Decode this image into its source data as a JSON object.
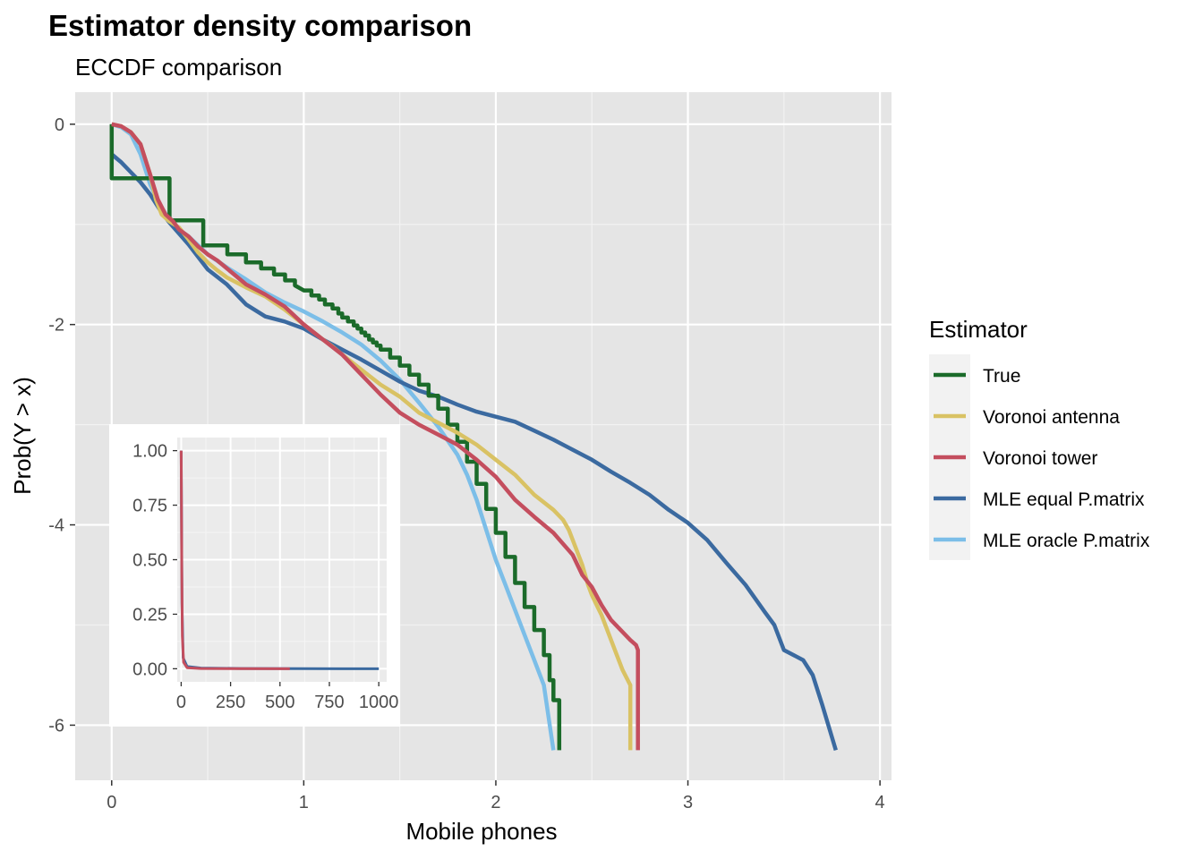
{
  "chart_data": {
    "type": "line",
    "title": "Estimator density comparison",
    "subtitle": "ECCDF comparison",
    "xlabel": "Mobile phones",
    "ylabel": "Prob(Y > x)",
    "xlim": [
      -0.19,
      4.06
    ],
    "ylim": [
      -6.55,
      0.32
    ],
    "x_ticks": [
      0,
      1,
      2,
      3,
      4
    ],
    "y_ticks": [
      0,
      -2,
      -4,
      -6
    ],
    "x_tick_labels": [
      "0",
      "1",
      "2",
      "3",
      "4"
    ],
    "y_tick_labels": [
      "0",
      "-2",
      "-4",
      "-6"
    ],
    "grid": true,
    "legend": {
      "title": "Estimator",
      "position": "right"
    },
    "series": [
      {
        "name": "True",
        "color": "#1b6b2a",
        "step": true,
        "x": [
          0.0,
          0.0,
          0.301,
          0.301,
          0.477,
          0.477,
          0.602,
          0.602,
          0.699,
          0.699,
          0.778,
          0.778,
          0.845,
          0.845,
          0.903,
          0.903,
          0.954,
          0.954,
          1.0,
          1.04,
          1.08,
          1.11,
          1.15,
          1.18,
          1.2,
          1.23,
          1.26,
          1.28,
          1.3,
          1.32,
          1.34,
          1.36,
          1.38,
          1.4,
          1.45,
          1.5,
          1.55,
          1.6,
          1.65,
          1.7,
          1.75,
          1.8,
          1.85,
          1.9,
          1.95,
          2.0,
          2.05,
          2.1,
          2.15,
          2.2,
          2.25,
          2.28,
          2.3,
          2.33,
          2.33
        ],
        "y": [
          0.0,
          -0.54,
          -0.54,
          -0.96,
          -0.96,
          -1.21,
          -1.21,
          -1.3,
          -1.3,
          -1.38,
          -1.38,
          -1.44,
          -1.44,
          -1.5,
          -1.5,
          -1.56,
          -1.56,
          -1.61,
          -1.66,
          -1.71,
          -1.75,
          -1.8,
          -1.84,
          -1.89,
          -1.93,
          -1.97,
          -2.01,
          -2.04,
          -2.08,
          -2.11,
          -2.15,
          -2.18,
          -2.21,
          -2.25,
          -2.33,
          -2.41,
          -2.5,
          -2.6,
          -2.71,
          -2.84,
          -3.0,
          -3.17,
          -3.37,
          -3.59,
          -3.84,
          -4.08,
          -4.32,
          -4.58,
          -4.82,
          -5.05,
          -5.3,
          -5.55,
          -5.75,
          -5.85,
          -6.25
        ]
      },
      {
        "name": "Voronoi antenna",
        "color": "#d9c264",
        "step": false,
        "x": [
          0.0,
          0.05,
          0.1,
          0.15,
          0.2,
          0.23,
          0.26,
          0.3,
          0.35,
          0.4,
          0.45,
          0.5,
          0.55,
          0.6,
          0.7,
          0.8,
          0.9,
          1.0,
          1.1,
          1.15,
          1.2,
          1.3,
          1.4,
          1.5,
          1.55,
          1.6,
          1.7,
          1.8,
          1.9,
          2.0,
          2.1,
          2.2,
          2.3,
          2.35,
          2.38,
          2.42,
          2.45,
          2.48,
          2.5,
          2.52,
          2.55,
          2.58,
          2.6,
          2.63,
          2.66,
          2.7,
          2.7
        ],
        "y": [
          0.0,
          -0.02,
          -0.08,
          -0.2,
          -0.5,
          -0.75,
          -0.9,
          -0.97,
          -1.03,
          -1.15,
          -1.28,
          -1.38,
          -1.46,
          -1.53,
          -1.63,
          -1.72,
          -1.85,
          -2.0,
          -2.15,
          -2.22,
          -2.3,
          -2.45,
          -2.6,
          -2.72,
          -2.8,
          -2.88,
          -2.98,
          -3.08,
          -3.2,
          -3.35,
          -3.5,
          -3.7,
          -3.85,
          -3.95,
          -4.05,
          -4.25,
          -4.4,
          -4.6,
          -4.7,
          -4.78,
          -4.9,
          -5.05,
          -5.15,
          -5.3,
          -5.45,
          -5.6,
          -6.25
        ]
      },
      {
        "name": "Voronoi tower",
        "color": "#c44e5e",
        "step": false,
        "x": [
          0.0,
          0.05,
          0.1,
          0.15,
          0.2,
          0.24,
          0.28,
          0.32,
          0.35,
          0.4,
          0.45,
          0.5,
          0.55,
          0.6,
          0.7,
          0.8,
          0.9,
          1.0,
          1.1,
          1.2,
          1.3,
          1.4,
          1.5,
          1.6,
          1.7,
          1.8,
          1.9,
          2.0,
          2.1,
          2.2,
          2.3,
          2.4,
          2.45,
          2.5,
          2.55,
          2.6,
          2.65,
          2.7,
          2.73,
          2.74,
          2.74
        ],
        "y": [
          0.0,
          -0.02,
          -0.08,
          -0.2,
          -0.5,
          -0.75,
          -0.9,
          -0.97,
          -1.05,
          -1.12,
          -1.22,
          -1.3,
          -1.36,
          -1.44,
          -1.6,
          -1.7,
          -1.82,
          -2.0,
          -2.15,
          -2.3,
          -2.5,
          -2.7,
          -2.88,
          -3.0,
          -3.1,
          -3.2,
          -3.35,
          -3.52,
          -3.75,
          -3.92,
          -4.08,
          -4.3,
          -4.5,
          -4.62,
          -4.8,
          -4.95,
          -5.05,
          -5.15,
          -5.2,
          -5.25,
          -6.25
        ]
      },
      {
        "name": "MLE equal P.matrix",
        "color": "#3b6aa0",
        "step": false,
        "x": [
          0.0,
          0.05,
          0.1,
          0.15,
          0.2,
          0.25,
          0.3,
          0.4,
          0.5,
          0.6,
          0.7,
          0.8,
          0.9,
          1.0,
          1.1,
          1.2,
          1.3,
          1.4,
          1.5,
          1.6,
          1.7,
          1.8,
          1.9,
          2.0,
          2.1,
          2.2,
          2.3,
          2.4,
          2.5,
          2.6,
          2.7,
          2.8,
          2.9,
          3.0,
          3.1,
          3.2,
          3.3,
          3.4,
          3.45,
          3.5,
          3.55,
          3.6,
          3.65,
          3.7,
          3.77
        ],
        "y": [
          -0.3,
          -0.38,
          -0.48,
          -0.58,
          -0.7,
          -0.85,
          -0.98,
          -1.2,
          -1.45,
          -1.6,
          -1.8,
          -1.92,
          -1.97,
          -2.04,
          -2.15,
          -2.25,
          -2.35,
          -2.46,
          -2.57,
          -2.66,
          -2.72,
          -2.8,
          -2.87,
          -2.92,
          -2.97,
          -3.06,
          -3.15,
          -3.25,
          -3.35,
          -3.47,
          -3.58,
          -3.7,
          -3.85,
          -3.98,
          -4.15,
          -4.38,
          -4.6,
          -4.87,
          -5.0,
          -5.25,
          -5.3,
          -5.35,
          -5.5,
          -5.8,
          -6.25
        ]
      },
      {
        "name": "MLE oracle P.matrix",
        "color": "#7cbee8",
        "step": false,
        "x": [
          0.0,
          0.05,
          0.1,
          0.15,
          0.2,
          0.25,
          0.3,
          0.35,
          0.4,
          0.5,
          0.6,
          0.7,
          0.8,
          0.9,
          1.0,
          1.1,
          1.2,
          1.3,
          1.4,
          1.5,
          1.6,
          1.7,
          1.8,
          1.85,
          1.9,
          1.95,
          2.0,
          2.05,
          2.1,
          2.15,
          2.2,
          2.25,
          2.3
        ],
        "y": [
          0.0,
          -0.03,
          -0.1,
          -0.3,
          -0.6,
          -0.8,
          -0.95,
          -1.05,
          -1.12,
          -1.3,
          -1.43,
          -1.55,
          -1.68,
          -1.78,
          -1.87,
          -1.97,
          -2.08,
          -2.2,
          -2.36,
          -2.55,
          -2.78,
          -3.02,
          -3.3,
          -3.5,
          -3.75,
          -4.05,
          -4.35,
          -4.6,
          -4.85,
          -5.1,
          -5.35,
          -5.6,
          -6.25
        ]
      }
    ],
    "inset": {
      "type": "line",
      "xlim": [
        -20,
        1040
      ],
      "ylim": [
        -0.06,
        1.06
      ],
      "x_ticks": [
        0,
        250,
        500,
        750,
        1000
      ],
      "y_ticks": [
        0.0,
        0.25,
        0.5,
        0.75,
        1.0
      ],
      "x_tick_labels": [
        "0",
        "250",
        "500",
        "750",
        "1000"
      ],
      "y_tick_labels": [
        "0.00",
        "0.25",
        "0.50",
        "0.75",
        "1.00"
      ],
      "series": [
        {
          "name": "MLE equal P.matrix",
          "color": "#3b6aa0",
          "x": [
            0,
            4,
            10,
            30,
            100,
            300,
            600,
            1000
          ],
          "y": [
            1.0,
            0.3,
            0.05,
            0.01,
            0.003,
            0.001,
            0.0005,
            0.0
          ]
        },
        {
          "name": "Voronoi tower",
          "color": "#c44e5e",
          "x": [
            0,
            1,
            3,
            6,
            12,
            30,
            100,
            550
          ],
          "y": [
            1.0,
            0.85,
            0.45,
            0.15,
            0.03,
            0.005,
            0.001,
            0.0
          ]
        }
      ]
    }
  }
}
